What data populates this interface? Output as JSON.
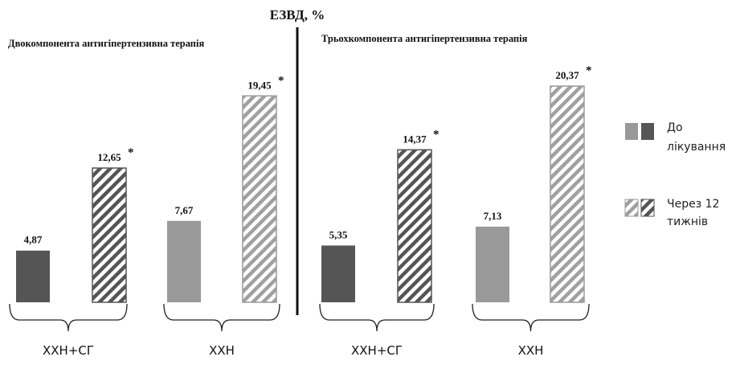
{
  "title": "ЕЗВД, %",
  "legend": [
    {
      "label_line1": "До",
      "label_line2": "лікування",
      "style": "solid"
    },
    {
      "label_line1": "Через 12",
      "label_line2": "тижнів",
      "style": "hatched"
    }
  ],
  "colors": {
    "dark": "#555555",
    "light": "#999999",
    "divider": "#111111"
  },
  "chart_data": [
    {
      "type": "bar",
      "title": "Двокомпонента антигіпертензивна терапія",
      "groups": [
        {
          "name": "ХХН+СГ",
          "shade": "dark",
          "bars": [
            {
              "period": "До лікування",
              "value": 4.87,
              "label": "4,87",
              "star": false
            },
            {
              "period": "Через 12 тижнів",
              "value": 12.65,
              "label": "12,65",
              "star": true
            }
          ]
        },
        {
          "name": "ХХН",
          "shade": "light",
          "bars": [
            {
              "period": "До лікування",
              "value": 7.67,
              "label": "7,67",
              "star": false
            },
            {
              "period": "Через 12 тижнів",
              "value": 19.45,
              "label": "19,45",
              "star": true
            }
          ]
        }
      ]
    },
    {
      "type": "bar",
      "title": "Трьохкомпонента антигіпертензивна терапія",
      "groups": [
        {
          "name": "ХХН+СГ",
          "shade": "dark",
          "bars": [
            {
              "period": "До лікування",
              "value": 5.35,
              "label": "5,35",
              "star": false
            },
            {
              "period": "Через 12 тижнів",
              "value": 14.37,
              "label": "14,37",
              "star": true
            }
          ]
        },
        {
          "name": "ХХН",
          "shade": "light",
          "bars": [
            {
              "period": "До лікування",
              "value": 7.13,
              "label": "7,13",
              "star": false
            },
            {
              "period": "Через 12 тижнів",
              "value": 20.37,
              "label": "20,37",
              "star": true
            }
          ]
        }
      ]
    }
  ],
  "star_symbol": "*"
}
